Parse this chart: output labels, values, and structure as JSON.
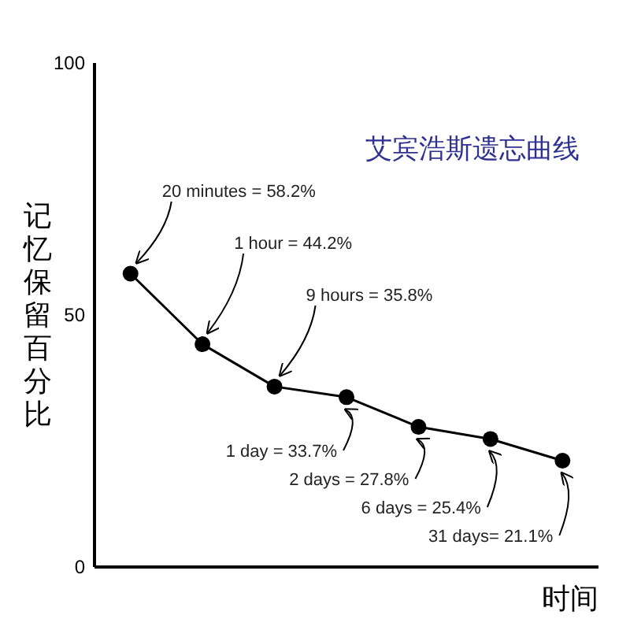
{
  "chart_data": {
    "type": "line",
    "title": "艾宾浩斯遗忘曲线",
    "ylabel": "记忆保留百分比",
    "xlabel": "时间",
    "categories": [
      null,
      null,
      null,
      null,
      null,
      null,
      null
    ],
    "values": [
      58.2,
      44.2,
      35.8,
      33.7,
      27.8,
      25.4,
      21.1
    ],
    "value_labels": [
      "20 minutes = 58.2%",
      "1 hour = 44.2%",
      "9 hours = 35.8%",
      "1 day = 33.7%",
      "2 days = 27.8%",
      "6 days = 25.4%",
      "31 days= 21.1%"
    ],
    "color": "#000000",
    "marker": "circle",
    "line_style": "solid",
    "ylim": [
      0,
      100
    ],
    "yticks": [
      0,
      50,
      100
    ]
  }
}
